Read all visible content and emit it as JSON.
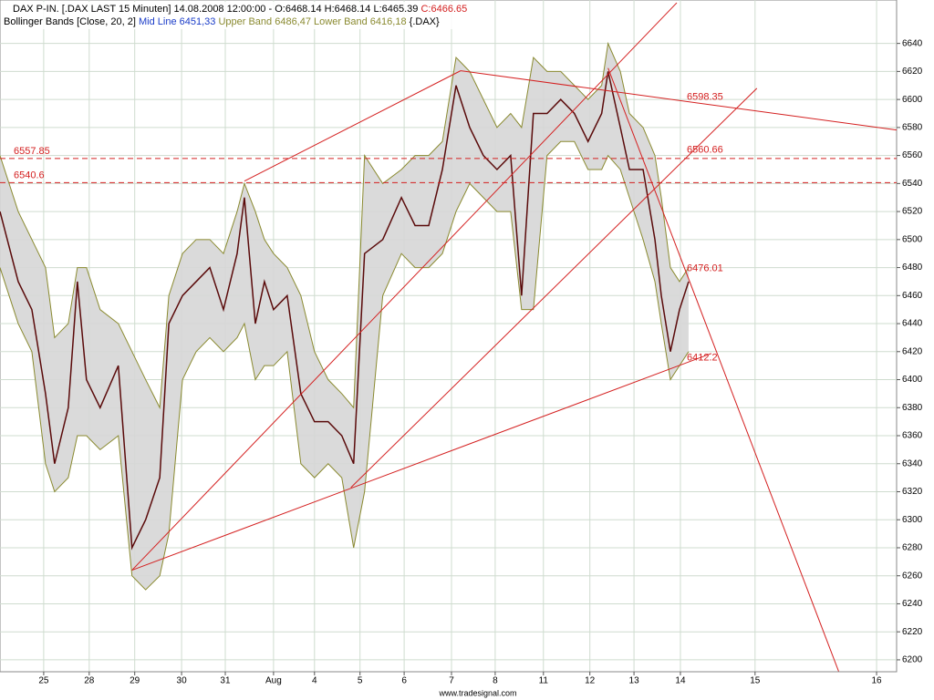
{
  "chart_data": {
    "type": "line",
    "header": {
      "symbol": "DAX P-IN.",
      "feed": "[.DAX LAST 15 Minuten]",
      "timestamp": "14.08.2008 12:00:00 -",
      "ohl": "O:6468.14 H:6468.14 L:6465.39",
      "close": "C:6466.65",
      "indicator": "Bollinger Bands [Close, 20, 2]",
      "mid": "Mid Line 6451,33",
      "upper": "Upper Band 6486,47",
      "lower": "Lower Band 6416,18",
      "source": "{.DAX}"
    },
    "footer": "www.tradesignal.com",
    "x": [
      -0.96,
      -0.56,
      -0.26,
      0.04,
      0.24,
      0.54,
      0.74,
      0.94,
      1.24,
      1.64,
      1.94,
      2.24,
      2.55,
      2.75,
      3.05,
      3.35,
      3.65,
      3.95,
      4.25,
      4.41,
      4.65,
      4.85,
      5.05,
      5.35,
      5.65,
      5.95,
      6.25,
      6.55,
      6.81,
      7.05,
      7.45,
      7.86,
      8.16,
      8.46,
      8.76,
      9.06,
      9.36,
      9.66,
      9.96,
      10.26,
      10.5,
      10.76,
      11.06,
      11.36,
      11.66,
      11.96,
      12.26,
      12.4,
      12.67,
      12.87,
      13.17,
      13.43,
      13.57,
      13.77,
      13.97,
      14.17
    ],
    "series": [
      {
        "name": "Upper Band",
        "color": "#8a8a30",
        "values": [
          6560,
          6520,
          6500,
          6480,
          6430,
          6440,
          6480,
          6480,
          6450,
          6440,
          6420,
          6400,
          6380,
          6460,
          6490,
          6500,
          6500,
          6490,
          6520,
          6540,
          6520,
          6500,
          6490,
          6480,
          6460,
          6420,
          6400,
          6390,
          6380,
          6560,
          6540,
          6550,
          6560,
          6560,
          6570,
          6630,
          6620,
          6600,
          6580,
          6590,
          6580,
          6630,
          6620,
          6620,
          6610,
          6600,
          6610,
          6640,
          6620,
          6590,
          6580,
          6560,
          6530,
          6480,
          6470,
          6480
        ]
      },
      {
        "name": "Lower Band",
        "color": "#8a8a30",
        "values": [
          6480,
          6440,
          6420,
          6340,
          6320,
          6330,
          6360,
          6360,
          6350,
          6360,
          6260,
          6250,
          6260,
          6290,
          6400,
          6420,
          6430,
          6420,
          6430,
          6440,
          6400,
          6410,
          6410,
          6420,
          6340,
          6330,
          6340,
          6330,
          6280,
          6320,
          6460,
          6490,
          6480,
          6480,
          6490,
          6520,
          6540,
          6530,
          6520,
          6520,
          6450,
          6450,
          6560,
          6570,
          6570,
          6550,
          6550,
          6560,
          6550,
          6530,
          6500,
          6470,
          6440,
          6400,
          6410,
          6420
        ]
      },
      {
        "name": "DAX P-IN.",
        "color": "#5a0a0a",
        "values": [
          6520,
          6470,
          6450,
          6390,
          6340,
          6380,
          6470,
          6400,
          6380,
          6410,
          6280,
          6300,
          6330,
          6440,
          6460,
          6470,
          6480,
          6450,
          6490,
          6530,
          6440,
          6470,
          6450,
          6460,
          6390,
          6370,
          6370,
          6360,
          6340,
          6490,
          6500,
          6530,
          6510,
          6510,
          6550,
          6610,
          6580,
          6560,
          6550,
          6560,
          6460,
          6590,
          6590,
          6600,
          6590,
          6570,
          6590,
          6620,
          6580,
          6550,
          6550,
          6500,
          6460,
          6420,
          6450,
          6470
        ]
      }
    ],
    "trendlines": [
      {
        "color": "#d42020",
        "points": [
          [
            1.94,
            6264
          ],
          [
            13.91,
            6669
          ]
        ]
      },
      {
        "color": "#d42020",
        "points": [
          [
            4.41,
            6541.7
          ],
          [
            9.16,
            6620.5
          ]
        ]
      },
      {
        "color": "#d42020",
        "points": [
          [
            1.94,
            6264
          ],
          [
            14.67,
            6418.7
          ]
        ]
      },
      {
        "color": "#d42020",
        "points": [
          [
            6.75,
            6323
          ],
          [
            15.67,
            6608
          ]
        ]
      },
      {
        "color": "#d42020",
        "points": [
          [
            9.16,
            6620.5
          ],
          [
            18.74,
            6578.2
          ]
        ]
      },
      {
        "color": "#d42020",
        "points": [
          [
            12.4,
            6622.4
          ],
          [
            17.47,
            6191.5
          ]
        ]
      }
    ],
    "hlines": [
      {
        "value": 6557.85,
        "color": "#d42020"
      },
      {
        "value": 6540.6,
        "color": "#d42020"
      }
    ],
    "line_labels": [
      6598.35,
      6560.66,
      6476.01,
      6412.2
    ],
    "xlim": [
      -0.96,
      18.74
    ],
    "ylim": [
      6191.5,
      6671
    ],
    "xticks": [
      {
        "value": 0,
        "label": "25"
      },
      {
        "value": 1,
        "label": "28"
      },
      {
        "value": 2,
        "label": "29"
      },
      {
        "value": 3.03,
        "label": "30"
      },
      {
        "value": 3.99,
        "label": "31"
      },
      {
        "value": 5.05,
        "label": "Aug"
      },
      {
        "value": 5.95,
        "label": "4"
      },
      {
        "value": 6.95,
        "label": "5"
      },
      {
        "value": 7.92,
        "label": "6"
      },
      {
        "value": 8.96,
        "label": "7"
      },
      {
        "value": 9.92,
        "label": "8"
      },
      {
        "value": 10.98,
        "label": "11"
      },
      {
        "value": 12.0,
        "label": "12"
      },
      {
        "value": 12.97,
        "label": "13"
      },
      {
        "value": 13.99,
        "label": "14"
      },
      {
        "value": 15.63,
        "label": "15"
      },
      {
        "value": 18.3,
        "label": "16"
      }
    ],
    "yticks": [
      6200,
      6220,
      6240,
      6260,
      6280,
      6300,
      6320,
      6340,
      6360,
      6380,
      6400,
      6420,
      6440,
      6460,
      6480,
      6500,
      6520,
      6540,
      6560,
      6580,
      6600,
      6620,
      6640
    ],
    "grid": true
  }
}
